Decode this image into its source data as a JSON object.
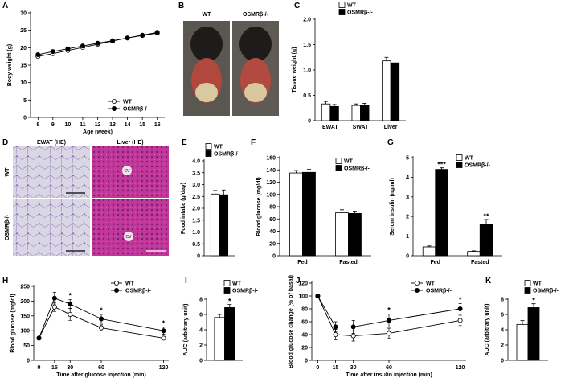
{
  "figure": {
    "B": {
      "panel": "B",
      "labels": [
        "WT",
        "OSMRβ-/-"
      ]
    },
    "D": {
      "panel": "D",
      "column_labels": [
        "EWAT (HE)",
        "Liver (HE)"
      ],
      "row_labels": [
        "WT",
        "OSMRβ-/-"
      ],
      "annotations": [
        "CV",
        "CV"
      ]
    }
  },
  "chart_data": [
    {
      "panel": "A",
      "type": "line",
      "ylabel": "Body weight (g)",
      "xlabel": "Age (week)",
      "x": [
        8,
        9,
        10,
        11,
        12,
        13,
        14,
        15,
        16
      ],
      "xlim": [
        7.5,
        16.5
      ],
      "xticks": [
        8,
        9,
        10,
        11,
        12,
        13,
        14,
        15,
        16
      ],
      "ylim": [
        0,
        30
      ],
      "yticks": [
        0,
        5,
        10,
        15,
        20,
        25,
        30
      ],
      "series": [
        {
          "name": "WT",
          "color": "#ffffff",
          "values": [
            17.5,
            18.3,
            19.2,
            20.1,
            21.0,
            21.9,
            22.8,
            23.6,
            24.4
          ],
          "errors": [
            0.4,
            0.4,
            0.4,
            0.4,
            0.4,
            0.4,
            0.4,
            0.4,
            0.4
          ]
        },
        {
          "name": "OSMRβ-/-",
          "color": "#000000",
          "values": [
            18.0,
            18.9,
            19.7,
            20.5,
            21.3,
            22.0,
            22.8,
            23.5,
            24.2
          ],
          "errors": [
            0.4,
            0.4,
            0.4,
            0.4,
            0.4,
            0.4,
            0.4,
            0.4,
            0.4
          ]
        }
      ]
    },
    {
      "panel": "C",
      "type": "bar",
      "ylabel": "Tissue weight (g)",
      "categories": [
        "EWAT",
        "SWAT",
        "Liver"
      ],
      "ylim": [
        0,
        2
      ],
      "yticks": [
        0,
        0.5,
        {
          "value": 1,
          "label": "1.0"
        },
        1.5,
        {
          "value": 2,
          "label": "2.0"
        }
      ],
      "series": [
        {
          "name": "WT",
          "color": "#ffffff",
          "values": [
            0.33,
            0.3,
            1.18
          ],
          "errors": [
            0.05,
            0.03,
            0.07
          ]
        },
        {
          "name": "OSMRβ-/-",
          "color": "#000000",
          "values": [
            0.28,
            0.31,
            1.14
          ],
          "errors": [
            0.04,
            0.03,
            0.06
          ]
        }
      ]
    },
    {
      "panel": "E",
      "type": "bar",
      "ylabel": "Food intake (g/day)",
      "categories": [
        null
      ],
      "ylim": [
        0,
        4
      ],
      "yticks": [
        0,
        0.5,
        {
          "value": 1,
          "label": "1.0"
        },
        1.5,
        {
          "value": 2,
          "label": "2.0"
        },
        2.5,
        {
          "value": 3,
          "label": "3.0"
        },
        3.5,
        {
          "value": 4,
          "label": "4.0"
        }
      ],
      "series": [
        {
          "name": "WT",
          "color": "#ffffff",
          "values": [
            2.6
          ],
          "errors": [
            0.15
          ]
        },
        {
          "name": "OSMRβ-/-",
          "color": "#000000",
          "values": [
            2.57
          ],
          "errors": [
            0.2
          ]
        }
      ]
    },
    {
      "panel": "F",
      "type": "bar",
      "ylabel": "Blood glucose (mg/dl)",
      "categories": [
        "Fed",
        "Fasted"
      ],
      "ylim": [
        0,
        160
      ],
      "yticks": [
        0,
        20,
        40,
        60,
        80,
        100,
        120,
        140,
        160
      ],
      "series": [
        {
          "name": "WT",
          "color": "#ffffff",
          "values": [
            135,
            70
          ],
          "errors": [
            4,
            5
          ]
        },
        {
          "name": "OSMRβ-/-",
          "color": "#000000",
          "values": [
            136,
            69
          ],
          "errors": [
            5,
            4
          ]
        }
      ]
    },
    {
      "panel": "G",
      "type": "bar",
      "ylabel": "Serum insulin (ng/ml)",
      "categories": [
        "Fed",
        "Fasted"
      ],
      "ylim": [
        0,
        5
      ],
      "yticks": [
        0,
        1,
        2,
        3,
        4,
        5
      ],
      "series": [
        {
          "name": "WT",
          "color": "#ffffff",
          "values": [
            0.45,
            0.22
          ],
          "errors": [
            0.05,
            0.03
          ]
        },
        {
          "name": "OSMRβ-/-",
          "color": "#000000",
          "values": [
            4.4,
            1.6
          ],
          "errors": [
            0.08,
            0.25
          ]
        }
      ],
      "annotations": [
        {
          "text": "***",
          "category": 0
        },
        {
          "text": "**",
          "category": 1
        }
      ]
    },
    {
      "panel": "H",
      "type": "line",
      "ylabel": "Blood glucose (mg/dl)",
      "xlabel": "Time after glucose injection (min)",
      "x": [
        0,
        15,
        30,
        60,
        120
      ],
      "xlim": [
        -5,
        125
      ],
      "xticks": [
        0,
        15,
        30,
        60,
        120
      ],
      "ylim": [
        0,
        250
      ],
      "yticks": [
        0,
        50,
        100,
        150,
        200,
        250
      ],
      "series": [
        {
          "name": "WT",
          "color": "#ffffff",
          "values": [
            75,
            180,
            155,
            110,
            75
          ],
          "errors": [
            5,
            15,
            20,
            10,
            5
          ]
        },
        {
          "name": "OSMRβ-/-",
          "color": "#000000",
          "values": [
            75,
            210,
            190,
            140,
            100
          ],
          "errors": [
            5,
            20,
            15,
            15,
            12
          ]
        }
      ],
      "annotations": [
        {
          "text": "*",
          "x": 30
        },
        {
          "text": "*",
          "x": 60
        },
        {
          "text": "*",
          "x": 120
        }
      ]
    },
    {
      "panel": "I",
      "type": "bar",
      "ylabel": "AUC (arbitrary unit)",
      "categories": [
        null
      ],
      "ylim": [
        0,
        8
      ],
      "yticks": [
        0,
        2,
        4,
        6,
        8
      ],
      "series": [
        {
          "name": "WT",
          "color": "#ffffff",
          "values": [
            5.6
          ],
          "errors": [
            0.4
          ]
        },
        {
          "name": "OSMRβ-/-",
          "color": "#000000",
          "values": [
            6.9
          ],
          "errors": [
            0.4
          ]
        }
      ],
      "annotations": [
        {
          "text": "*",
          "category": 0
        }
      ]
    },
    {
      "panel": "J",
      "type": "line",
      "ylabel": "Blood glucose change (% of basal)",
      "xlabel": "Time after insulin injection (min)",
      "x": [
        0,
        15,
        30,
        60,
        120
      ],
      "xlim": [
        -5,
        125
      ],
      "xticks": [
        0,
        15,
        30,
        60,
        120
      ],
      "ylim": [
        0,
        120
      ],
      "yticks": [
        0,
        20,
        40,
        60,
        80,
        100,
        120
      ],
      "series": [
        {
          "name": "WT",
          "color": "#ffffff",
          "values": [
            100,
            40,
            38,
            42,
            62
          ],
          "errors": [
            0,
            8,
            8,
            8,
            8
          ]
        },
        {
          "name": "OSMRβ-/-",
          "color": "#000000",
          "values": [
            100,
            52,
            52,
            62,
            80
          ],
          "errors": [
            0,
            8,
            10,
            10,
            8
          ]
        }
      ],
      "annotations": [
        {
          "text": "*",
          "x": 60
        },
        {
          "text": "*",
          "x": 120
        }
      ]
    },
    {
      "panel": "K",
      "type": "bar",
      "ylabel": "AUC (arbitrary unit)",
      "categories": [
        null
      ],
      "ylim": [
        0,
        8
      ],
      "yticks": [
        0,
        2,
        4,
        6,
        8
      ],
      "series": [
        {
          "name": "WT",
          "color": "#ffffff",
          "values": [
            4.7
          ],
          "errors": [
            0.5
          ]
        },
        {
          "name": "OSMRβ-/-",
          "color": "#000000",
          "values": [
            6.9
          ],
          "errors": [
            0.5
          ]
        }
      ],
      "annotations": [
        {
          "text": "*",
          "category": 0
        }
      ]
    }
  ]
}
